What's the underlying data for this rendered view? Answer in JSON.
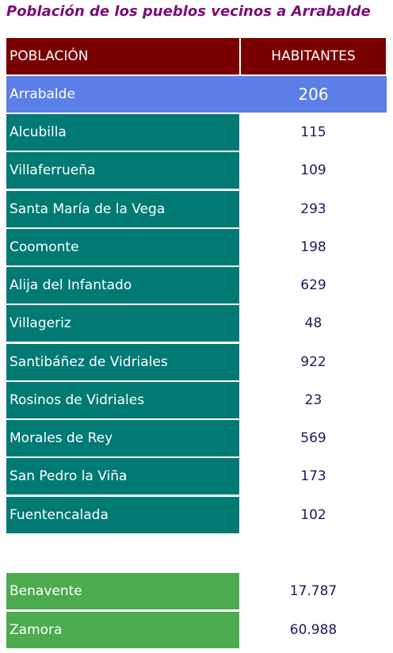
{
  "title": "Población de los pueblos vecinos a Arrabalde",
  "header": {
    "col_name": "POBLACIÓN",
    "col_value": "HABITANTES"
  },
  "highlight": {
    "name": "Arrabalde",
    "value": "206"
  },
  "villages": [
    {
      "name": "Alcubilla",
      "value": "115"
    },
    {
      "name": "Villaferrueña",
      "value": "109"
    },
    {
      "name": "Santa María de la Vega",
      "value": "293"
    },
    {
      "name": "Coomonte",
      "value": "198"
    },
    {
      "name": "Alija del Infantado",
      "value": "629"
    },
    {
      "name": "Villageriz",
      "value": "48"
    },
    {
      "name": "Santibáñez de Vidriales",
      "value": "922"
    },
    {
      "name": "Rosinos de Vidriales",
      "value": "23"
    },
    {
      "name": "Morales de Rey",
      "value": "569"
    },
    {
      "name": "San Pedro la Viña",
      "value": "173"
    },
    {
      "name": "Fuentencalada",
      "value": "102"
    }
  ],
  "cities": [
    {
      "name": "Benavente",
      "value": "17.787"
    },
    {
      "name": "Zamora",
      "value": "60.988"
    }
  ],
  "colors": {
    "header": "#7a0000",
    "highlight": "#5b7fe6",
    "village": "#017a74",
    "city": "#4caa4f",
    "title": "#7a0e7a"
  }
}
